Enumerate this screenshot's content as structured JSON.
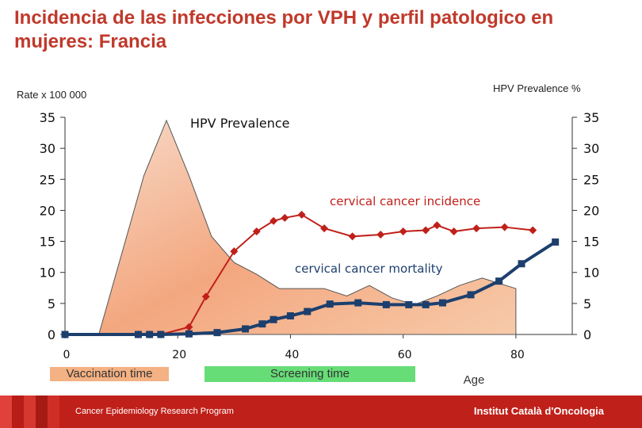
{
  "title": "Incidencia de las infecciones por VPH y perfil patologico en mujeres: Francia",
  "left_axis_label": "Rate x 100 000",
  "right_axis_label": "HPV Prevalence %",
  "footer": {
    "left": "Cancer Epidemiology  Research Program",
    "right": "Institut Català d'Oncologia"
  },
  "vaccination_label": "Vaccination time",
  "screening_label": "Screening time",
  "age_label": "Age",
  "colors": {
    "title": "#c0392b",
    "incidence": "#c0201a",
    "mortality": "#1c3f6e",
    "screening_box": "#66dd77",
    "vaccination_box": "#f4b183"
  },
  "chart_data": {
    "type": "area",
    "xlim": [
      0,
      90
    ],
    "ylim": [
      0,
      35
    ],
    "x_ticks": [
      "0",
      "20",
      "40",
      "60",
      "80"
    ],
    "y_ticks_left": [
      "0",
      "5",
      "10",
      "15",
      "20",
      "25",
      "30",
      "35"
    ],
    "y_ticks_right": [
      "0",
      "5",
      "10",
      "15",
      "20",
      "25",
      "30",
      "35"
    ],
    "annotations": {
      "prevalence": "HPV Prevalence",
      "incidence": "cervical cancer incidence",
      "mortality": "cervical cancer mortality"
    },
    "series": [
      {
        "name": "HPV Prevalence",
        "kind": "area",
        "x": [
          6,
          14,
          18,
          22,
          26,
          30,
          34,
          38,
          42,
          46,
          50,
          54,
          58,
          62,
          66,
          70,
          74,
          80
        ],
        "y": [
          0,
          25.6,
          34.5,
          25.6,
          15.8,
          11.6,
          9.7,
          7.4,
          7.4,
          7.4,
          6.2,
          7.9,
          5.9,
          4.8,
          6.2,
          7.9,
          9.1,
          7.4
        ]
      },
      {
        "name": "cervical cancer incidence",
        "kind": "line",
        "x": [
          0,
          13,
          15,
          17,
          22,
          25,
          30,
          34,
          37,
          39,
          42,
          46,
          51,
          56,
          60,
          64,
          66,
          69,
          73,
          78,
          83
        ],
        "y": [
          0,
          0,
          0,
          0,
          1.2,
          6.1,
          13.4,
          16.6,
          18.3,
          18.8,
          19.3,
          17.1,
          15.8,
          16.1,
          16.6,
          16.8,
          17.6,
          16.6,
          17.1,
          17.3,
          16.8
        ]
      },
      {
        "name": "cervical cancer mortality",
        "kind": "line",
        "x": [
          0,
          13,
          15,
          17,
          22,
          27,
          32,
          35,
          37,
          40,
          43,
          47,
          52,
          57,
          61,
          64,
          67,
          72,
          77,
          81,
          87
        ],
        "y": [
          0,
          0,
          0,
          0,
          0.1,
          0.3,
          0.9,
          1.7,
          2.4,
          3.0,
          3.7,
          4.9,
          5.1,
          4.8,
          4.8,
          4.8,
          5.1,
          6.4,
          8.6,
          11.4,
          14.9
        ]
      }
    ]
  }
}
